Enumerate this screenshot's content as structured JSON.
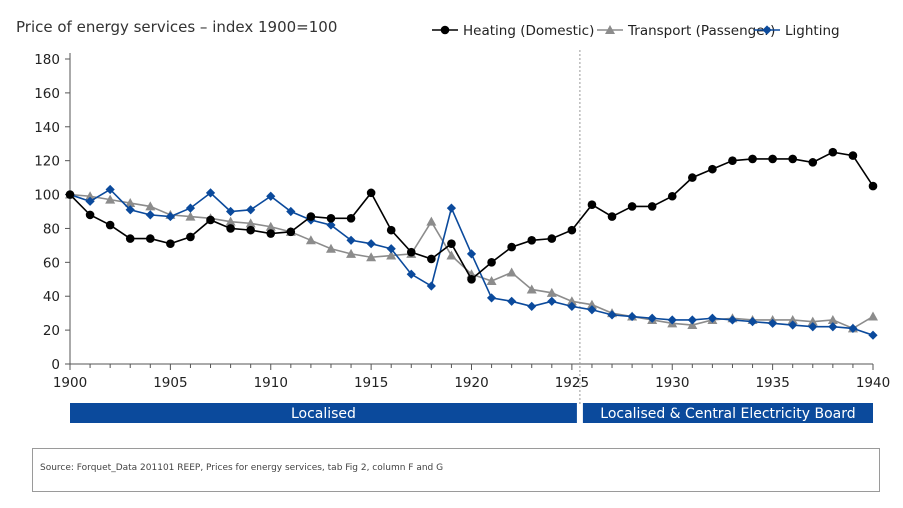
{
  "chart_data": {
    "type": "line",
    "title": "Price of energy services – index 1900=100",
    "xlabel": "",
    "ylabel": "",
    "xlim": [
      1900,
      1940
    ],
    "ylim": [
      0,
      180
    ],
    "y_ticks": [
      0,
      20,
      40,
      60,
      80,
      100,
      120,
      140,
      160,
      180
    ],
    "x_ticks": [
      1900,
      1905,
      1910,
      1915,
      1920,
      1925,
      1930,
      1935,
      1940
    ],
    "grid": false,
    "legend_position": "top-right",
    "vertical_marker": 1925.4,
    "x": [
      1900,
      1901,
      1902,
      1903,
      1904,
      1905,
      1906,
      1907,
      1908,
      1909,
      1910,
      1911,
      1912,
      1913,
      1914,
      1915,
      1916,
      1917,
      1918,
      1919,
      1920,
      1921,
      1922,
      1923,
      1924,
      1925,
      1926,
      1927,
      1928,
      1929,
      1930,
      1931,
      1932,
      1933,
      1934,
      1935,
      1936,
      1937,
      1938,
      1939,
      1940
    ],
    "series": [
      {
        "name": "Heating (Domestic)",
        "color": "#000000",
        "marker": "circle",
        "values": [
          100,
          88,
          82,
          74,
          74,
          71,
          75,
          85,
          80,
          79,
          77,
          78,
          87,
          86,
          86,
          101,
          79,
          66,
          62,
          71,
          50,
          60,
          69,
          73,
          74,
          79,
          94,
          87,
          93,
          93,
          99,
          110,
          115,
          120,
          121,
          121,
          121,
          119,
          125,
          123,
          105
        ]
      },
      {
        "name": "Transport (Passenger)",
        "color": "#8c8c8c",
        "marker": "triangle",
        "values": [
          100,
          99,
          97,
          95,
          93,
          88,
          87,
          86,
          84,
          83,
          81,
          78,
          73,
          68,
          65,
          63,
          64,
          65,
          84,
          64,
          53,
          49,
          54,
          44,
          42,
          37,
          35,
          30,
          28,
          26,
          24,
          23,
          26,
          27,
          26,
          26,
          26,
          25,
          26,
          21,
          28
        ]
      },
      {
        "name": "Lighting",
        "color": "#0b4a9c",
        "marker": "diamond",
        "values": [
          100,
          96,
          103,
          91,
          88,
          87,
          92,
          101,
          90,
          91,
          99,
          90,
          85,
          82,
          73,
          71,
          68,
          53,
          46,
          92,
          65,
          39,
          37,
          34,
          37,
          34,
          32,
          29,
          28,
          27,
          26,
          26,
          27,
          26,
          25,
          24,
          23,
          22,
          22,
          21,
          17
        ]
      }
    ],
    "bands": [
      {
        "label": "Localised",
        "color": "#0b4a9c",
        "from": 1900,
        "to": 1925.4
      },
      {
        "label": "Localised & Central Electricity Board",
        "color": "#0b4a9c",
        "from": 1925.4,
        "to": 1940
      }
    ]
  },
  "source": "Source: Forquet_Data 201101 REEP, Prices for energy services, tab Fig 2, column F and G"
}
